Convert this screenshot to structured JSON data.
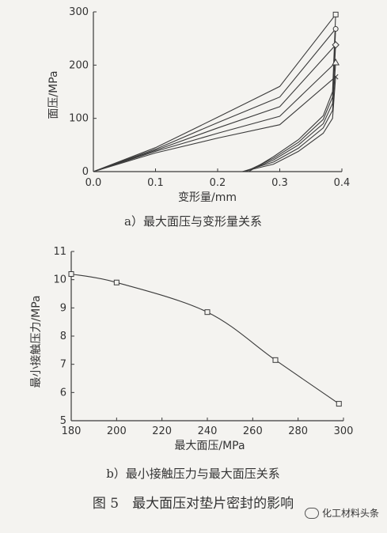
{
  "chart_data": [
    {
      "type": "line",
      "caption": "a）最大面压与变形量关系",
      "ylabel": "面压/MPa",
      "xlabel": "变形量/mm",
      "xlim": [
        0,
        0.4
      ],
      "ylim": [
        0,
        300
      ],
      "xticks": [
        "0.0",
        "0.1",
        "0.2",
        "0.3",
        "0.4"
      ],
      "yticks": [
        "0",
        "100",
        "200",
        "300"
      ],
      "grid": false,
      "series": [
        {
          "peak": 295,
          "marker": "square",
          "load": [
            [
              0,
              0
            ],
            [
              0.1,
              45
            ],
            [
              0.2,
              102
            ],
            [
              0.3,
              160
            ],
            [
              0.39,
              295
            ]
          ],
          "unload": [
            [
              0.39,
              295
            ],
            [
              0.385,
              150
            ],
            [
              0.37,
              105
            ],
            [
              0.33,
              60
            ],
            [
              0.29,
              28
            ],
            [
              0.25,
              0
            ]
          ]
        },
        {
          "peak": 268,
          "marker": "circle",
          "load": [
            [
              0,
              0
            ],
            [
              0.1,
              42
            ],
            [
              0.2,
              92
            ],
            [
              0.3,
              140
            ],
            [
              0.39,
              268
            ]
          ],
          "unload": [
            [
              0.39,
              268
            ],
            [
              0.385,
              140
            ],
            [
              0.37,
              98
            ],
            [
              0.33,
              55
            ],
            [
              0.29,
              25
            ],
            [
              0.245,
              0
            ]
          ]
        },
        {
          "peak": 238,
          "marker": "diamond",
          "load": [
            [
              0,
              0
            ],
            [
              0.1,
              40
            ],
            [
              0.2,
              82
            ],
            [
              0.3,
              122
            ],
            [
              0.39,
              238
            ]
          ],
          "unload": [
            [
              0.39,
              238
            ],
            [
              0.385,
              128
            ],
            [
              0.37,
              90
            ],
            [
              0.33,
              50
            ],
            [
              0.29,
              22
            ],
            [
              0.245,
              0
            ]
          ]
        },
        {
          "peak": 205,
          "marker": "triangle",
          "load": [
            [
              0,
              0
            ],
            [
              0.1,
              38
            ],
            [
              0.2,
              72
            ],
            [
              0.3,
              104
            ],
            [
              0.39,
              205
            ]
          ],
          "unload": [
            [
              0.39,
              205
            ],
            [
              0.385,
              115
            ],
            [
              0.37,
              82
            ],
            [
              0.33,
              44
            ],
            [
              0.29,
              18
            ],
            [
              0.24,
              0
            ]
          ]
        },
        {
          "peak": 178,
          "marker": "x",
          "load": [
            [
              0,
              0
            ],
            [
              0.1,
              35
            ],
            [
              0.2,
              63
            ],
            [
              0.3,
              88
            ],
            [
              0.39,
              178
            ]
          ],
          "unload": [
            [
              0.39,
              178
            ],
            [
              0.385,
              100
            ],
            [
              0.37,
              72
            ],
            [
              0.33,
              38
            ],
            [
              0.29,
              14
            ],
            [
              0.24,
              0
            ]
          ]
        }
      ]
    },
    {
      "type": "line",
      "caption": "b）最小接触压力与最大面压关系",
      "ylabel": "最小接触压力/MPa",
      "xlabel": "最大面压/MPa",
      "xlim": [
        180,
        300
      ],
      "ylim": [
        5,
        11
      ],
      "xticks": [
        "180",
        "200",
        "220",
        "240",
        "260",
        "280",
        "300"
      ],
      "yticks": [
        "5",
        "6",
        "7",
        "8",
        "9",
        "10",
        "11"
      ],
      "grid": false,
      "series": [
        {
          "marker": "square",
          "x": [
            180,
            200,
            240,
            270,
            298
          ],
          "y": [
            10.2,
            9.9,
            8.85,
            7.15,
            5.6
          ]
        }
      ]
    }
  ],
  "figure_caption": "图 5　最大面压对垫片密封的影响",
  "watermark": "化工材料头条"
}
